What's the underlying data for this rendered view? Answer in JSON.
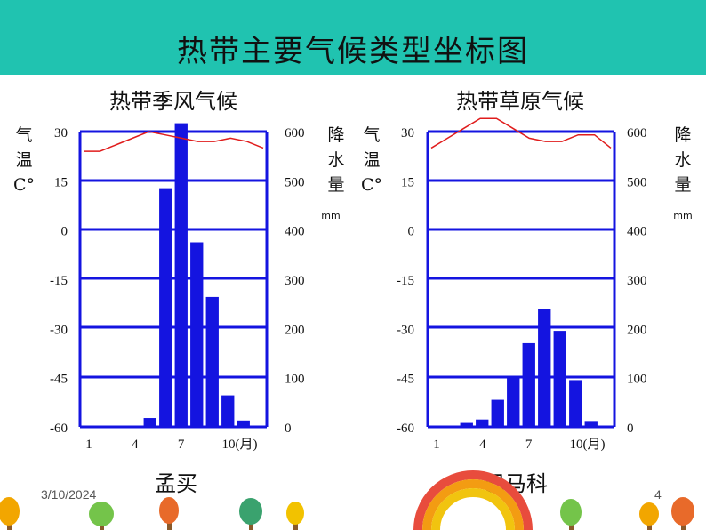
{
  "slide": {
    "title": "热带主要气候类型坐标图",
    "date": "3/10/2024",
    "page_number": "4"
  },
  "chart_data": [
    {
      "type": "bar",
      "title": "热带季风气候",
      "place": "孟买",
      "x_tick_labels": [
        "1",
        "4",
        "7",
        "10(月)"
      ],
      "x_tick_months": [
        1,
        4,
        7,
        10
      ],
      "months": [
        1,
        2,
        3,
        4,
        5,
        6,
        7,
        8,
        9,
        10,
        11,
        12
      ],
      "temp_axis_label": [
        "气",
        "温",
        "C°"
      ],
      "temp_ticks": [
        "30",
        "15",
        "0",
        "-15",
        "-30",
        "-45",
        "-60"
      ],
      "temp_tick_values": [
        30,
        15,
        0,
        -15,
        -30,
        -45,
        -60
      ],
      "temp_ylim": [
        -60,
        30
      ],
      "precip_axis_label": [
        "降",
        "水",
        "量"
      ],
      "precip_unit": "mm",
      "precip_ticks": [
        "600",
        "500",
        "400",
        "300",
        "200",
        "100",
        "0"
      ],
      "precip_tick_values": [
        600,
        500,
        400,
        300,
        200,
        100,
        0
      ],
      "precip_ylim": [
        0,
        600
      ],
      "series": [
        {
          "name": "降水量",
          "kind": "bar",
          "values": [
            2,
            1,
            0,
            2,
            18,
            485,
            617,
            375,
            264,
            64,
            13,
            2
          ]
        },
        {
          "name": "气温",
          "kind": "line",
          "values": [
            24,
            24,
            26,
            28,
            30,
            29,
            28,
            27,
            27,
            28,
            27,
            25
          ]
        }
      ]
    },
    {
      "type": "bar",
      "title": "热带草原气候",
      "place": "巴马科",
      "x_tick_labels": [
        "1",
        "4",
        "7",
        "10(月)"
      ],
      "x_tick_months": [
        1,
        4,
        7,
        10
      ],
      "months": [
        1,
        2,
        3,
        4,
        5,
        6,
        7,
        8,
        9,
        10,
        11,
        12
      ],
      "temp_axis_label": [
        "气",
        "温",
        "C°"
      ],
      "temp_ticks": [
        "30",
        "15",
        "0",
        "-15",
        "-30",
        "-45",
        "-60"
      ],
      "temp_tick_values": [
        30,
        15,
        0,
        -15,
        -30,
        -45,
        -60
      ],
      "temp_ylim": [
        -60,
        30
      ],
      "precip_axis_label": [
        "降",
        "水",
        "量"
      ],
      "precip_unit": "mm",
      "precip_ticks": [
        "600",
        "500",
        "400",
        "300",
        "200",
        "100",
        "0"
      ],
      "precip_tick_values": [
        600,
        500,
        400,
        300,
        200,
        100,
        0
      ],
      "precip_ylim": [
        0,
        600
      ],
      "series": [
        {
          "name": "降水量",
          "kind": "bar",
          "values": [
            2,
            0,
            8,
            15,
            55,
            102,
            170,
            240,
            195,
            95,
            12,
            0
          ]
        },
        {
          "name": "气温",
          "kind": "line",
          "values": [
            25,
            28,
            31,
            34,
            34,
            31,
            28,
            27,
            27,
            29,
            29,
            25
          ]
        }
      ]
    }
  ],
  "colors": {
    "title_bar": "#20c3b0",
    "bar": "#1414e0",
    "grid": "#1414e0",
    "temp_line": "#e01c1c"
  }
}
